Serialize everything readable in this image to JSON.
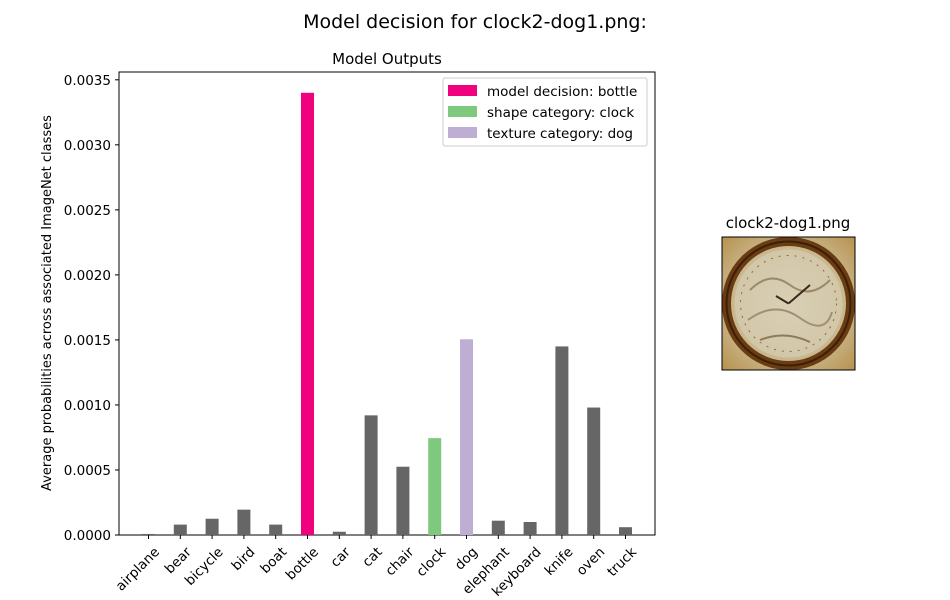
{
  "figure": {
    "suptitle": "Model decision for clock2-dog1.png:"
  },
  "chart_data": {
    "type": "bar",
    "title": "Model Outputs",
    "xlabel": "",
    "ylabel": "Average probabilities across associated ImageNet classes",
    "ylim": [
      0,
      0.00356
    ],
    "yticks": [
      "0.0000",
      "0.0005",
      "0.0010",
      "0.0015",
      "0.0020",
      "0.0025",
      "0.0030",
      "0.0035"
    ],
    "categories": [
      "airplane",
      "bear",
      "bicycle",
      "bird",
      "boat",
      "bottle",
      "car",
      "cat",
      "chair",
      "clock",
      "dog",
      "elephant",
      "keyboard",
      "knife",
      "oven",
      "truck"
    ],
    "values": [
      8e-06,
      8e-05,
      0.000125,
      0.000195,
      8e-05,
      0.0034,
      2.5e-05,
      0.00092,
      0.000525,
      0.000745,
      0.001505,
      0.00011,
      0.0001,
      0.00145,
      0.00098,
      6e-05
    ],
    "bar_colors": [
      "#666666",
      "#666666",
      "#666666",
      "#666666",
      "#666666",
      "#f0027f",
      "#666666",
      "#666666",
      "#666666",
      "#7fc97f",
      "#beaed4",
      "#666666",
      "#666666",
      "#666666",
      "#666666",
      "#666666"
    ],
    "grid": false,
    "legend_position": "top-right",
    "legend": [
      {
        "label": "model decision: bottle",
        "color": "#f0027f"
      },
      {
        "label": "shape category: clock",
        "color": "#7fc97f"
      },
      {
        "label": "texture category: dog",
        "color": "#beaed4"
      }
    ]
  },
  "thumbnail": {
    "title": "clock2-dog1.png",
    "image_description_icon": "clock-with-dog-texture-image"
  }
}
